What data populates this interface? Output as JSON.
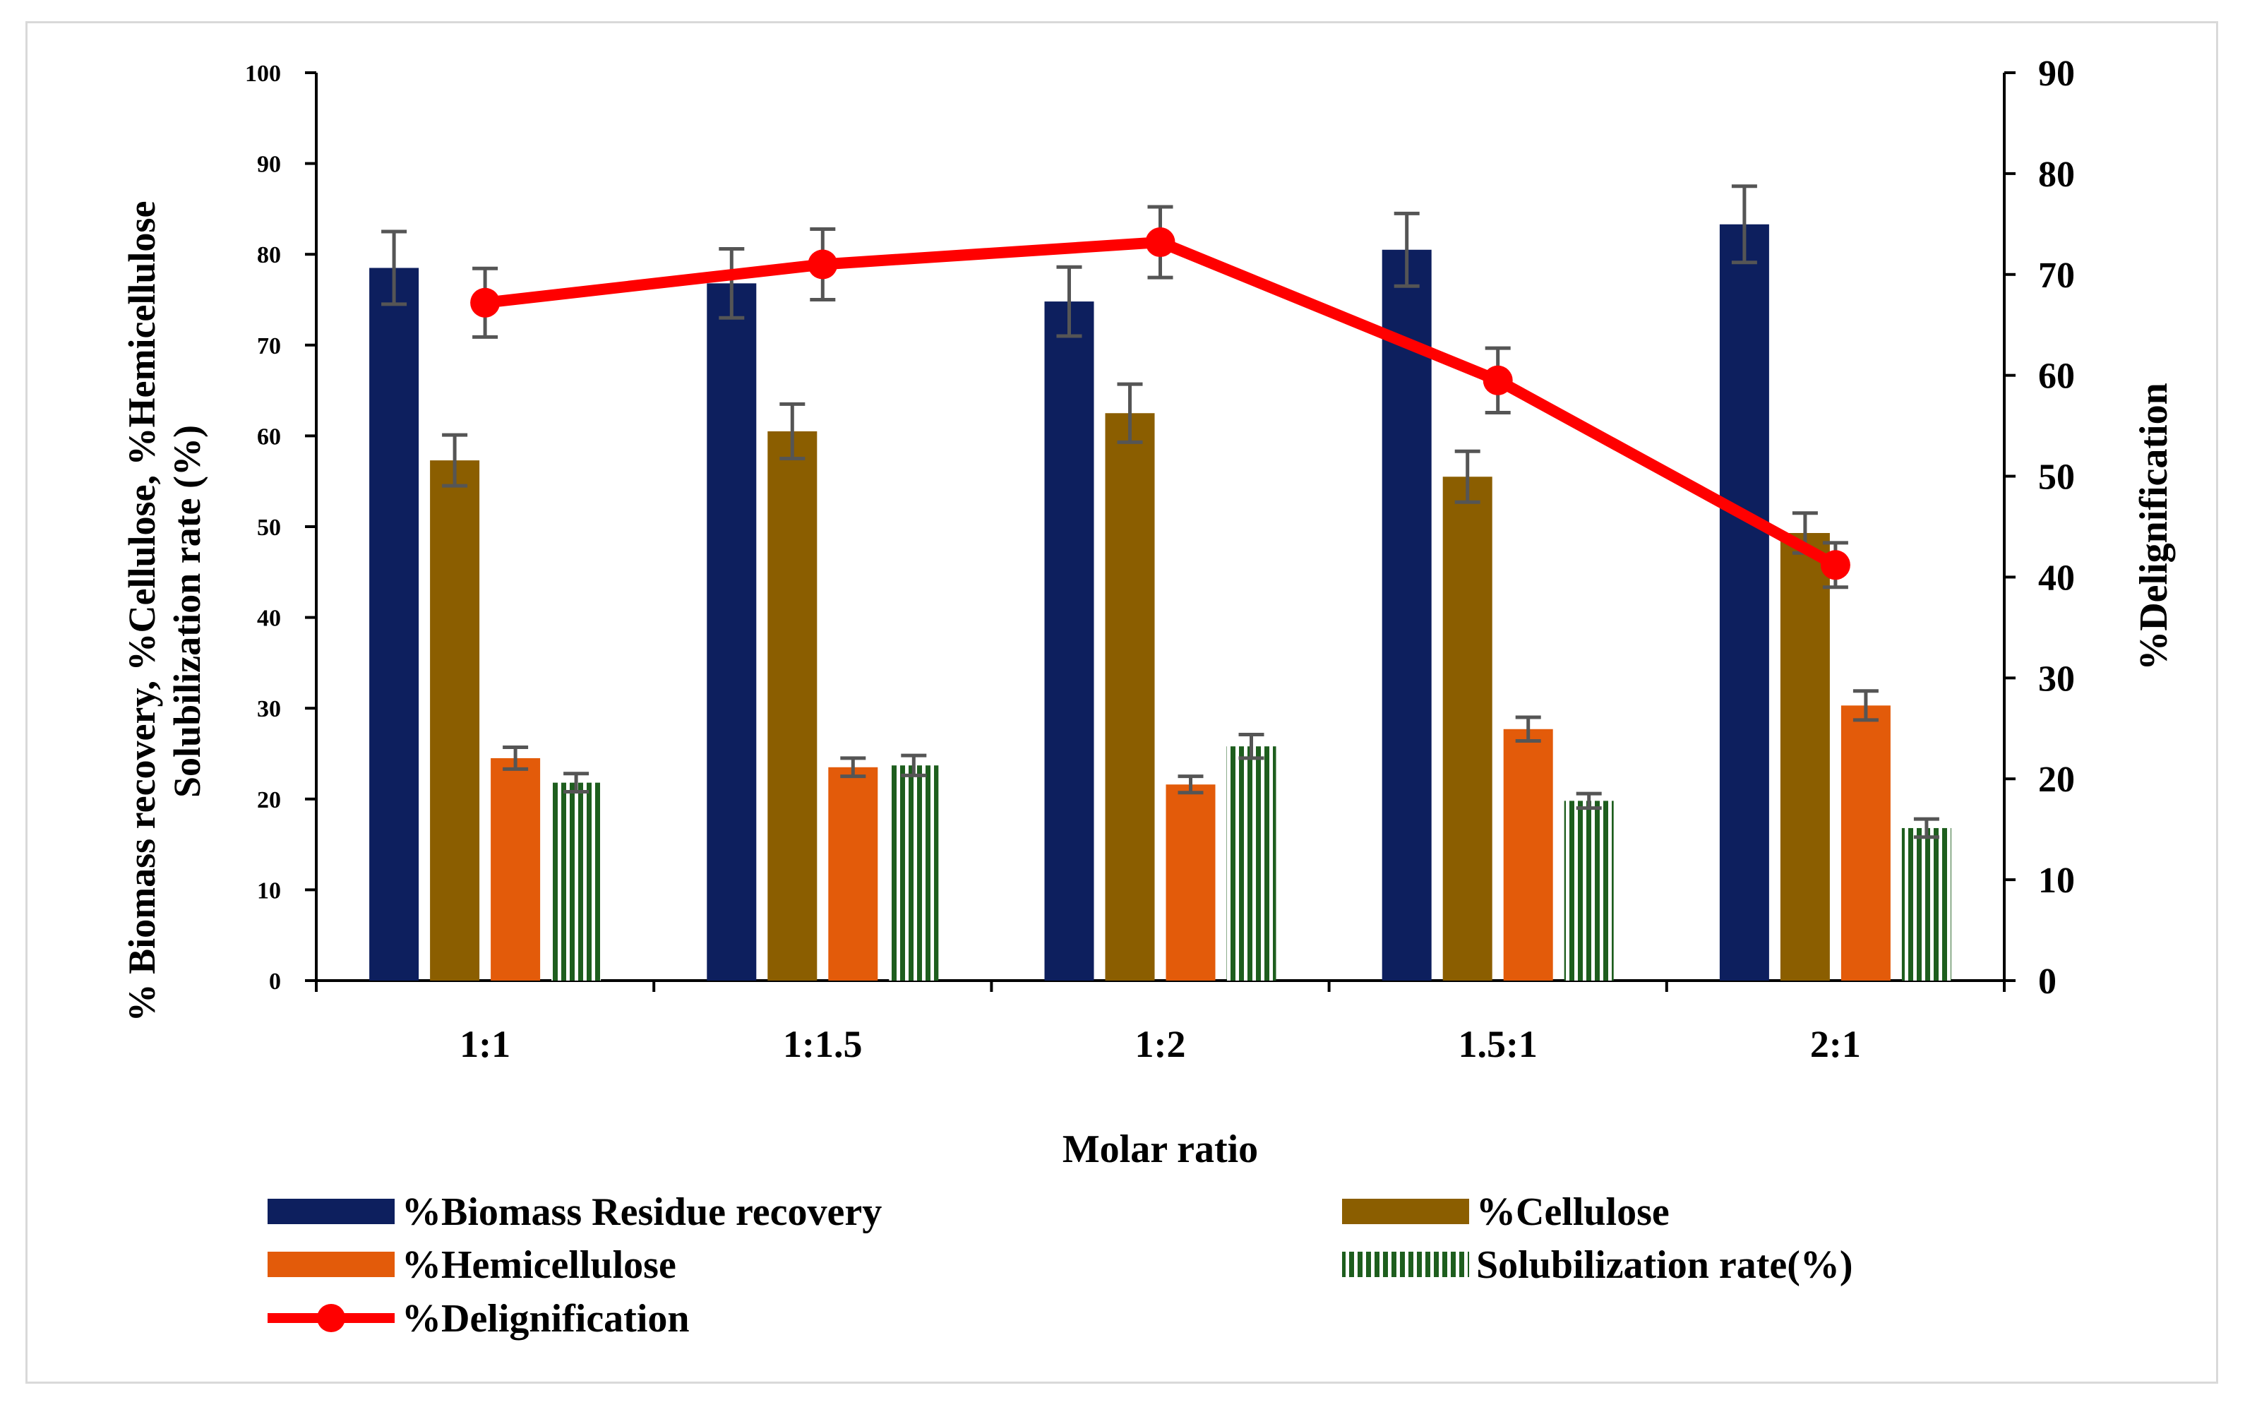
{
  "chart_data": {
    "type": "bar",
    "title": "",
    "xlabel": "Molar ratio",
    "ylabel": "% Biomass recovery, %Cellulose, %Hemicellulose",
    "ylabel_line2": "Solubilization rate (%)",
    "y2label": "%Delignification",
    "categories": [
      "1:1",
      "1:1.5",
      "1:2",
      "1.5:1",
      "2:1"
    ],
    "ylim": [
      0,
      100
    ],
    "y_ticks": [
      0,
      10,
      20,
      30,
      40,
      50,
      60,
      70,
      80,
      90,
      100
    ],
    "y2lim": [
      0,
      90
    ],
    "y2_ticks": [
      0,
      10,
      20,
      30,
      40,
      50,
      60,
      70,
      80,
      90
    ],
    "grid": false,
    "legend_position": "bottom",
    "series": [
      {
        "name": "%Biomass Residue recovery",
        "kind": "bar",
        "axis": "left",
        "color": "#0d1f5e",
        "values": [
          78.5,
          76.8,
          74.8,
          80.5,
          83.3
        ],
        "errors": [
          4.0,
          3.8,
          3.8,
          4.0,
          4.2
        ]
      },
      {
        "name": "%Cellulose",
        "kind": "bar",
        "axis": "left",
        "color": "#8b5e00",
        "values": [
          57.3,
          60.5,
          62.5,
          55.5,
          49.3
        ],
        "errors": [
          2.8,
          3.0,
          3.2,
          2.8,
          2.2
        ]
      },
      {
        "name": "%Hemicellulose",
        "kind": "bar",
        "axis": "left",
        "color": "#e35b0a",
        "values": [
          24.5,
          23.5,
          21.6,
          27.7,
          30.3
        ],
        "errors": [
          1.2,
          1.0,
          0.9,
          1.3,
          1.6
        ]
      },
      {
        "name": "Solubilization rate(%)",
        "kind": "bar",
        "axis": "left",
        "color": "#1e5e1e",
        "pattern": "vertical-stripes",
        "values": [
          21.8,
          23.7,
          25.8,
          19.8,
          16.8
        ],
        "errors": [
          1.0,
          1.1,
          1.3,
          0.8,
          1.0
        ]
      },
      {
        "name": "%Delignification",
        "kind": "line",
        "axis": "right",
        "color": "#ff0000",
        "values": [
          67.2,
          71.0,
          73.2,
          59.5,
          41.2
        ],
        "errors": [
          3.4,
          3.5,
          3.5,
          3.2,
          2.2
        ]
      }
    ]
  }
}
